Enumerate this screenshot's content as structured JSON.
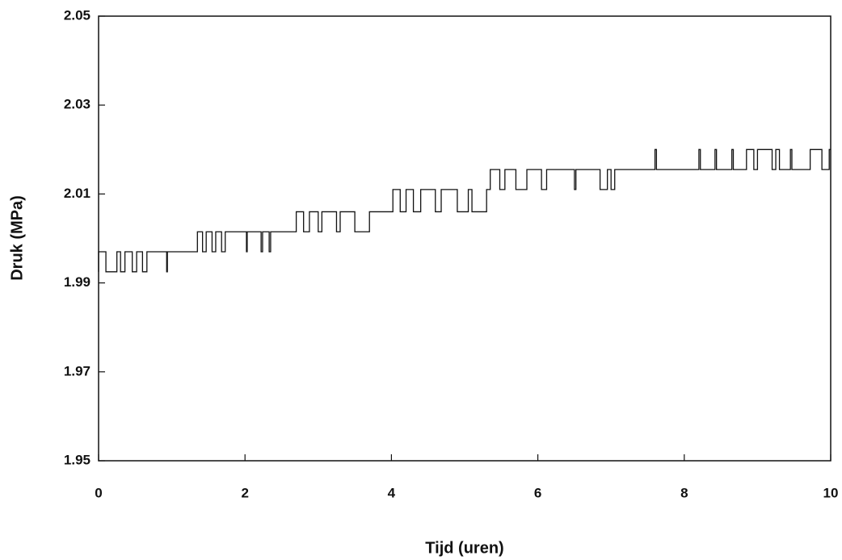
{
  "chart_data": {
    "type": "line",
    "x_label": "Tijd (uren)",
    "y_label": "Druk (MPa)",
    "xlim": [
      0,
      10
    ],
    "xticks": [
      0,
      2,
      4,
      6,
      8,
      10
    ],
    "ylim": [
      1.95,
      2.05
    ],
    "yticks": [
      1.95,
      1.97,
      1.99,
      2.01,
      2.03,
      2.05
    ],
    "grid": false,
    "x": [
      0,
      0,
      0.1,
      0.1,
      0.25,
      0.25,
      0.3,
      0.3,
      0.36,
      0.36,
      0.46,
      0.46,
      0.52,
      0.52,
      0.6,
      0.6,
      0.66,
      0.66,
      0.93,
      0.93,
      0.94,
      0.94,
      1.35,
      1.35,
      1.42,
      1.42,
      1.47,
      1.47,
      1.55,
      1.55,
      1.6,
      1.6,
      1.68,
      1.68,
      1.73,
      1.73,
      2.02,
      2.02,
      2.03,
      2.03,
      2.22,
      2.22,
      2.24,
      2.24,
      2.33,
      2.33,
      2.35,
      2.35,
      2.7,
      2.7,
      2.8,
      2.8,
      2.88,
      2.88,
      3.0,
      3.0,
      3.05,
      3.05,
      3.25,
      3.25,
      3.3,
      3.3,
      3.5,
      3.5,
      3.7,
      3.7,
      4.02,
      4.02,
      4.12,
      4.12,
      4.2,
      4.2,
      4.3,
      4.3,
      4.4,
      4.4,
      4.6,
      4.6,
      4.68,
      4.68,
      4.9,
      4.9,
      5.05,
      5.05,
      5.1,
      5.1,
      5.3,
      5.3,
      5.35,
      5.35,
      5.48,
      5.48,
      5.55,
      5.55,
      5.7,
      5.7,
      5.85,
      5.85,
      6.05,
      6.05,
      6.12,
      6.12,
      6.5,
      6.5,
      6.52,
      6.52,
      6.85,
      6.85,
      6.95,
      6.95,
      7.0,
      7.0,
      7.05,
      7.05,
      7.6,
      7.6,
      7.62,
      7.62,
      8.2,
      8.2,
      8.22,
      8.22,
      8.42,
      8.42,
      8.44,
      8.44,
      8.65,
      8.65,
      8.67,
      8.67,
      8.85,
      8.85,
      8.95,
      8.95,
      9.0,
      9.0,
      9.2,
      9.2,
      9.25,
      9.25,
      9.3,
      9.3,
      9.45,
      9.45,
      9.47,
      9.47,
      9.72,
      9.72,
      9.88,
      9.88,
      9.98,
      9.98,
      10
    ],
    "series": [
      {
        "color": "#111111",
        "values": [
          1.9925,
          1.997,
          1.997,
          1.9925,
          1.9925,
          1.997,
          1.997,
          1.9925,
          1.9925,
          1.997,
          1.997,
          1.9925,
          1.9925,
          1.997,
          1.997,
          1.9925,
          1.9925,
          1.997,
          1.997,
          1.9925,
          1.9925,
          1.997,
          1.997,
          2.0015,
          2.0015,
          1.997,
          1.997,
          2.0015,
          2.0015,
          1.997,
          1.997,
          2.0015,
          2.0015,
          1.997,
          1.997,
          2.0015,
          2.0015,
          1.997,
          1.997,
          2.0015,
          2.0015,
          1.997,
          1.997,
          2.0015,
          2.0015,
          1.997,
          1.997,
          2.0015,
          2.0015,
          2.006,
          2.006,
          2.0015,
          2.0015,
          2.006,
          2.006,
          2.0015,
          2.0015,
          2.006,
          2.006,
          2.0015,
          2.0015,
          2.006,
          2.006,
          2.0015,
          2.0015,
          2.006,
          2.006,
          2.011,
          2.011,
          2.006,
          2.006,
          2.011,
          2.011,
          2.006,
          2.006,
          2.011,
          2.011,
          2.006,
          2.006,
          2.011,
          2.011,
          2.006,
          2.006,
          2.011,
          2.011,
          2.006,
          2.006,
          2.011,
          2.011,
          2.0155,
          2.0155,
          2.011,
          2.011,
          2.0155,
          2.0155,
          2.011,
          2.011,
          2.0155,
          2.0155,
          2.011,
          2.011,
          2.0155,
          2.0155,
          2.011,
          2.011,
          2.0155,
          2.0155,
          2.011,
          2.011,
          2.0155,
          2.0155,
          2.011,
          2.011,
          2.0155,
          2.0155,
          2.02,
          2.02,
          2.0155,
          2.0155,
          2.02,
          2.02,
          2.0155,
          2.0155,
          2.02,
          2.02,
          2.0155,
          2.0155,
          2.02,
          2.02,
          2.0155,
          2.0155,
          2.02,
          2.02,
          2.0155,
          2.0155,
          2.02,
          2.02,
          2.0155,
          2.0155,
          2.02,
          2.02,
          2.0155,
          2.0155,
          2.02,
          2.02,
          2.0155,
          2.0155,
          2.02,
          2.02,
          2.0155,
          2.0155,
          2.02,
          2.02
        ]
      }
    ]
  }
}
